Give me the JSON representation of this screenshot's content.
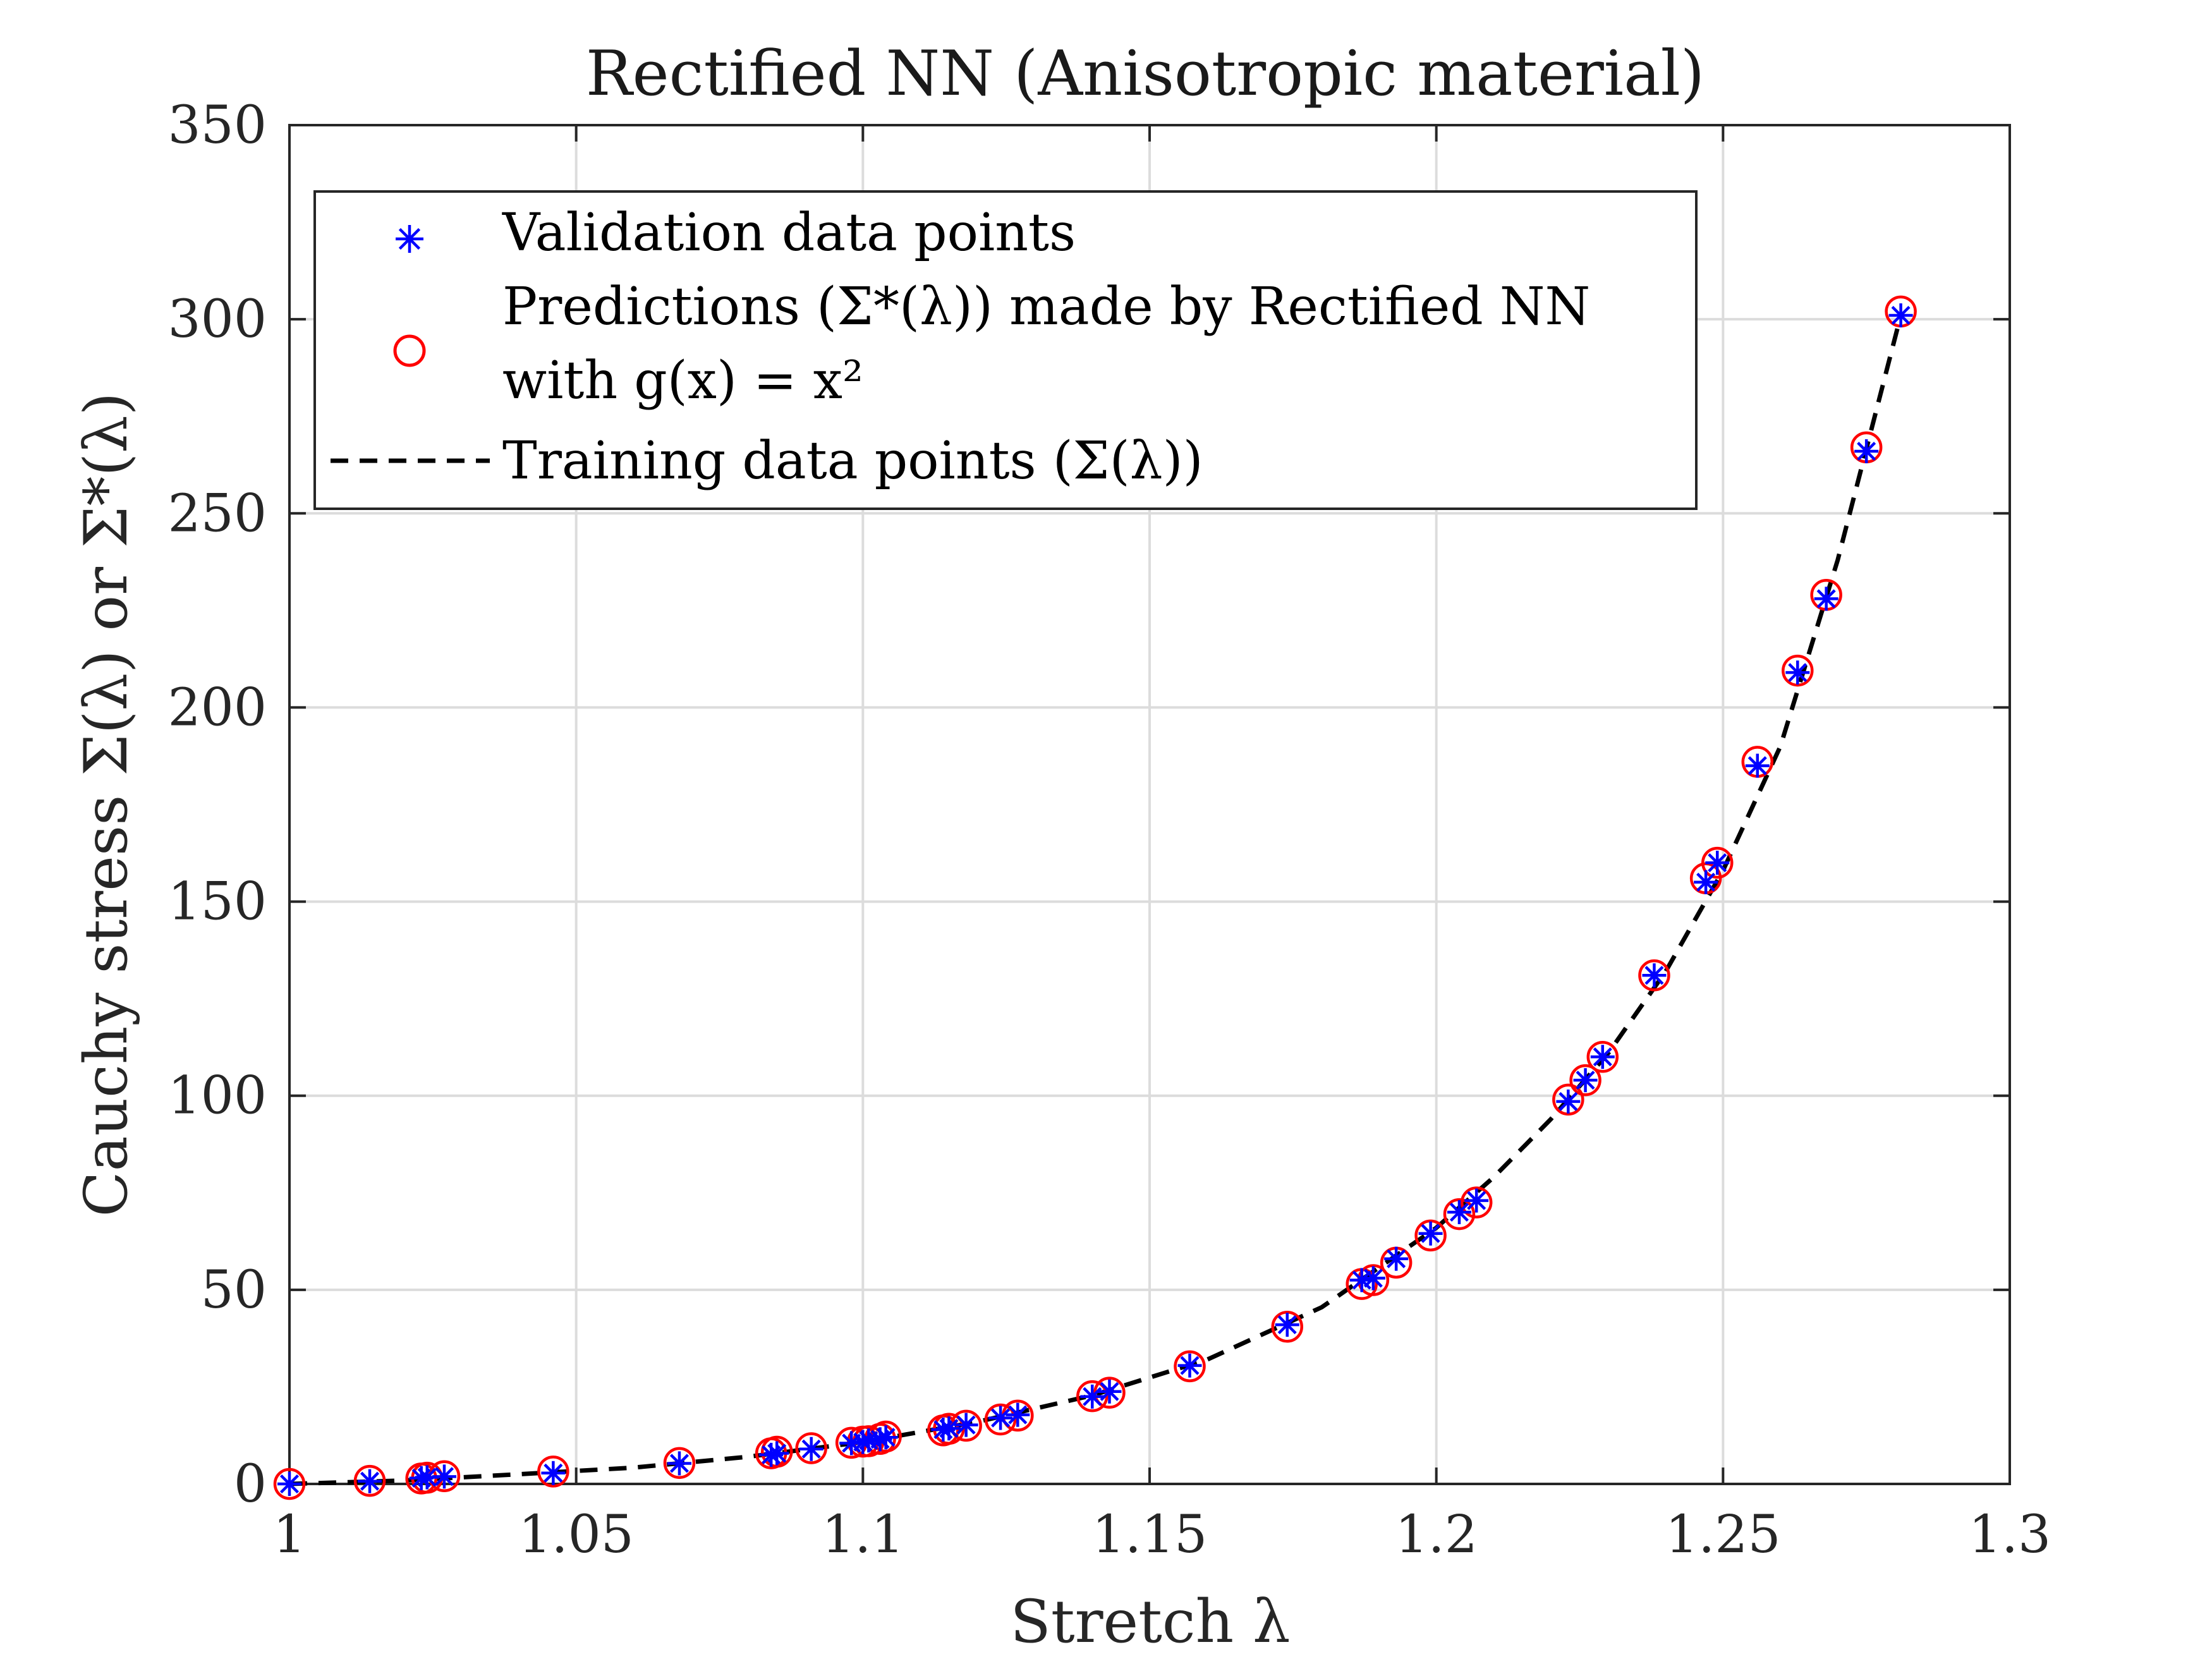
{
  "colors": {
    "validation": "#0000ff",
    "prediction": "#ff0000",
    "training": "#000000",
    "grid": "#dcdcdc",
    "axis": "#262626"
  },
  "chart_data": {
    "type": "scatter",
    "title": "Rectified NN (Anisotropic material)",
    "xlabel": "Stretch λ",
    "ylabel": "Cauchy stress Σ(λ) or Σ*(λ)",
    "xlim": [
      1,
      1.3
    ],
    "ylim": [
      0,
      350
    ],
    "xticks": [
      1,
      1.05,
      1.1,
      1.15,
      1.2,
      1.25,
      1.3
    ],
    "xtick_labels": [
      "1",
      "1.05",
      "1.1",
      "1.15",
      "1.2",
      "1.25",
      "1.3"
    ],
    "yticks": [
      0,
      50,
      100,
      150,
      200,
      250,
      300,
      350
    ],
    "ytick_labels": [
      "0",
      "50",
      "100",
      "150",
      "200",
      "250",
      "300",
      "350"
    ],
    "grid": true,
    "legend_position": "top-left",
    "legend": {
      "validation": "Validation data points",
      "prediction_line1": "Predictions (Σ*(λ)) made by Rectified NN",
      "prediction_line2": "with g(x) = x²",
      "training": "Training data points (Σ(λ))"
    },
    "series": [
      {
        "name": "Validation data points",
        "marker": "asterisk",
        "x": [
          1.0,
          1.014,
          1.023,
          1.024,
          1.027,
          1.046,
          1.068,
          1.084,
          1.085,
          1.091,
          1.098,
          1.1,
          1.101,
          1.103,
          1.104,
          1.114,
          1.115,
          1.118,
          1.124,
          1.127,
          1.14,
          1.143,
          1.157,
          1.174,
          1.187,
          1.189,
          1.193,
          1.199,
          1.204,
          1.207,
          1.223,
          1.226,
          1.229,
          1.238,
          1.247,
          1.249,
          1.256,
          1.263,
          1.268,
          1.275,
          1.281
        ],
        "y": [
          0,
          0.7,
          1.5,
          1.7,
          1.9,
          2.8,
          5.3,
          7.5,
          7.9,
          9.0,
          10.5,
          10.8,
          11.2,
          11.5,
          12.0,
          14.0,
          14.3,
          15.2,
          17.0,
          17.8,
          22.5,
          23.8,
          30.5,
          41.0,
          52.5,
          53.0,
          58.0,
          64.5,
          70.0,
          73.0,
          98.5,
          104.0,
          110.0,
          131.0,
          155.0,
          160.0,
          185.0,
          209.0,
          228.0,
          266.0,
          301.0
        ]
      },
      {
        "name": "Predictions (Σ*(λ)) made by Rectified NN with g(x) = x²",
        "marker": "circle",
        "x": [
          1.0,
          1.014,
          1.023,
          1.024,
          1.027,
          1.046,
          1.068,
          1.084,
          1.085,
          1.091,
          1.098,
          1.1,
          1.101,
          1.103,
          1.104,
          1.114,
          1.115,
          1.118,
          1.124,
          1.127,
          1.14,
          1.143,
          1.157,
          1.174,
          1.187,
          1.189,
          1.193,
          1.199,
          1.204,
          1.207,
          1.223,
          1.226,
          1.229,
          1.238,
          1.247,
          1.249,
          1.256,
          1.263,
          1.268,
          1.275,
          1.281
        ],
        "y": [
          0,
          0.8,
          1.4,
          1.6,
          2.0,
          3.2,
          5.4,
          7.9,
          8.3,
          9.2,
          10.6,
          10.9,
          11.0,
          11.6,
          12.2,
          13.8,
          14.2,
          15.0,
          16.6,
          17.6,
          22.6,
          23.5,
          30.3,
          40.5,
          51.5,
          52.5,
          57.0,
          64.0,
          69.5,
          72.5,
          99.0,
          104.0,
          110.0,
          131.0,
          156.0,
          160.0,
          186.0,
          209.5,
          229.0,
          267.0,
          302.0
        ]
      },
      {
        "name": "Training data points (Σ(λ))",
        "marker": "dashed-line",
        "x": [
          1.0,
          1.02,
          1.04,
          1.06,
          1.08,
          1.1,
          1.12,
          1.14,
          1.16,
          1.18,
          1.2,
          1.21,
          1.22,
          1.23,
          1.24,
          1.25,
          1.26,
          1.27,
          1.281
        ],
        "y": [
          0,
          0.9,
          2.5,
          4.2,
          7.0,
          10.8,
          16.0,
          22.8,
          32.0,
          45.5,
          66.0,
          79.0,
          94.0,
          111.0,
          132.0,
          158.0,
          190.0,
          238.0,
          301.0
        ]
      }
    ]
  }
}
